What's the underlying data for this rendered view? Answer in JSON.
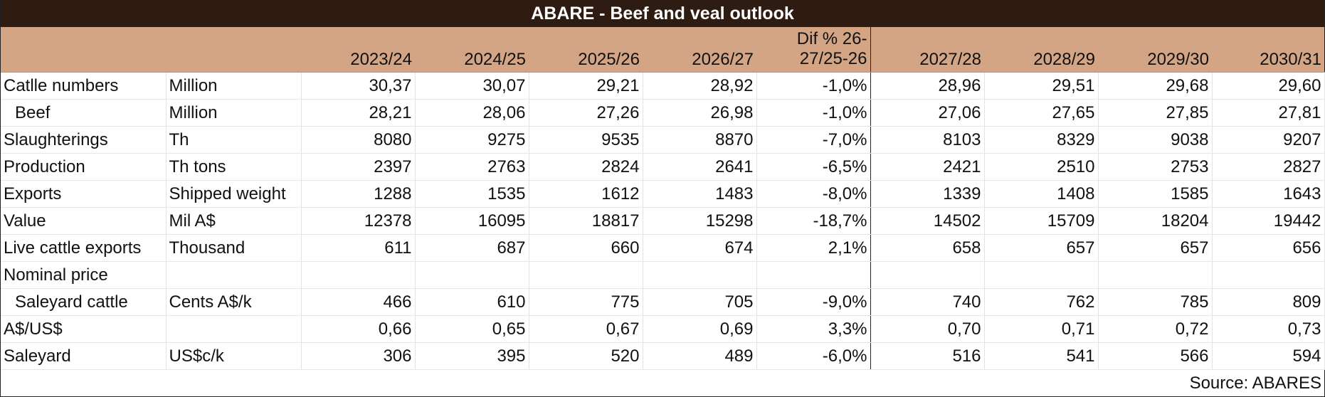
{
  "title": "ABARE - Beef and veal outlook",
  "source": "Source: ABARES",
  "header": {
    "years_a": [
      "2023/24",
      "2024/25",
      "2025/26",
      "2026/27"
    ],
    "dif": "Dif % 26-27/25-26",
    "years_b": [
      "2027/28",
      "2028/29",
      "2029/30",
      "2030/31"
    ]
  },
  "rows": [
    {
      "label": "Catlle numbers",
      "unit": "Million",
      "a": [
        "30,37",
        "30,07",
        "29,21",
        "28,92"
      ],
      "dif": "-1,0%",
      "b": [
        "28,96",
        "29,51",
        "29,68",
        "29,60"
      ]
    },
    {
      "label": "Beef",
      "unit": "Million",
      "a": [
        "28,21",
        "28,06",
        "27,26",
        "26,98"
      ],
      "dif": "-1,0%",
      "b": [
        "27,06",
        "27,65",
        "27,85",
        "27,81"
      ]
    },
    {
      "label": "Slaughterings",
      "unit": "Th",
      "a": [
        "8080",
        "9275",
        "9535",
        "8870"
      ],
      "dif": "-7,0%",
      "b": [
        "8103",
        "8329",
        "9038",
        "9207"
      ]
    },
    {
      "label": "Production",
      "unit": "Th tons",
      "a": [
        "2397",
        "2763",
        "2824",
        "2641"
      ],
      "dif": "-6,5%",
      "b": [
        "2421",
        "2510",
        "2753",
        "2827"
      ]
    },
    {
      "label": "Exports",
      "unit": "Shipped weight",
      "a": [
        "1288",
        "1535",
        "1612",
        "1483"
      ],
      "dif": "-8,0%",
      "b": [
        "1339",
        "1408",
        "1585",
        "1643"
      ]
    },
    {
      "label": "Value",
      "unit": "Mil A$",
      "a": [
        "12378",
        "16095",
        "18817",
        "15298"
      ],
      "dif": "-18,7%",
      "b": [
        "14502",
        "15709",
        "18204",
        "19442"
      ]
    },
    {
      "label": "Live cattle exports",
      "unit": "Thousand",
      "a": [
        "611",
        "687",
        "660",
        "674"
      ],
      "dif": "2,1%",
      "b": [
        "658",
        "657",
        "657",
        "656"
      ]
    },
    {
      "label": "Nominal price",
      "unit": "",
      "a": [
        "",
        "",
        "",
        ""
      ],
      "dif": "",
      "b": [
        "",
        "",
        "",
        ""
      ]
    },
    {
      "label": "Saleyard cattle",
      "unit": "Cents A$/k",
      "a": [
        "466",
        "610",
        "775",
        "705"
      ],
      "dif": "-9,0%",
      "b": [
        "740",
        "762",
        "785",
        "809"
      ]
    },
    {
      "label": "A$/US$",
      "unit": "",
      "a": [
        "0,66",
        "0,65",
        "0,67",
        "0,69"
      ],
      "dif": "3,3%",
      "b": [
        "0,70",
        "0,71",
        "0,72",
        "0,73"
      ]
    },
    {
      "label": "Saleyard",
      "unit": "US$c/k",
      "a": [
        "306",
        "395",
        "520",
        "489"
      ],
      "dif": "-6,0%",
      "b": [
        "516",
        "541",
        "566",
        "594"
      ]
    }
  ]
}
